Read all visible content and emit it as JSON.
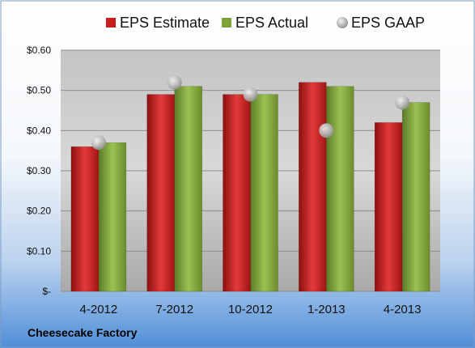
{
  "brand": "Cheesecake Factory",
  "chart_data": {
    "type": "bar",
    "categories": [
      "4-2012",
      "7-2012",
      "10-2012",
      "1-2013",
      "4-2013"
    ],
    "series": [
      {
        "name": "EPS Estimate",
        "kind": "bar",
        "color": "#c81e1e",
        "values": [
          0.36,
          0.49,
          0.49,
          0.52,
          0.42
        ]
      },
      {
        "name": "EPS Actual",
        "kind": "bar",
        "color": "#7fa33a",
        "values": [
          0.37,
          0.51,
          0.49,
          0.51,
          0.47
        ]
      },
      {
        "name": "EPS GAAP",
        "kind": "marker",
        "color": "#b0b0b0",
        "values": [
          0.37,
          0.52,
          0.49,
          0.4,
          0.47
        ]
      }
    ],
    "ylim": [
      0,
      0.6
    ],
    "yticks": [
      0,
      0.1,
      0.2,
      0.3,
      0.4,
      0.5,
      0.6
    ],
    "ytick_labels": [
      "$-",
      "$0.10",
      "$0.20",
      "$0.30",
      "$0.40",
      "$0.50",
      "$0.60"
    ],
    "legend_position": "top",
    "grid": true
  }
}
